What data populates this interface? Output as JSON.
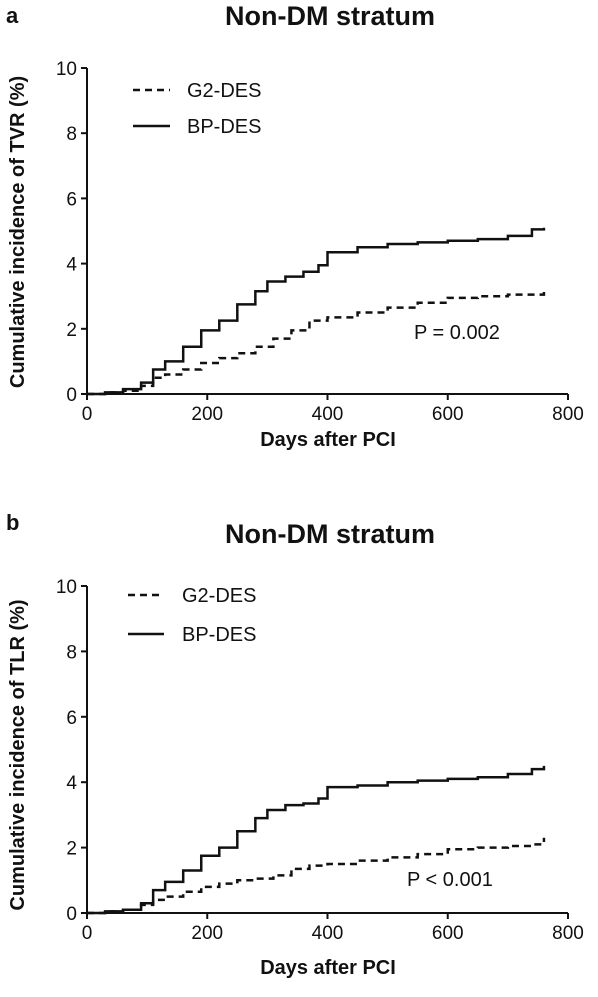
{
  "chart_data": [
    {
      "type": "line",
      "panel_label": "a",
      "title": "Non-DM stratum",
      "xlabel": "Days after PCI",
      "ylabel": "Cumulative incidence of TVR (%)",
      "xlim": [
        0,
        800
      ],
      "ylim": [
        0,
        10
      ],
      "xticks": [
        "0",
        "200",
        "400",
        "600",
        "800"
      ],
      "yticks": [
        "0",
        "2",
        "4",
        "6",
        "8",
        "10"
      ],
      "grid": false,
      "legend_position": "top-left",
      "annotation": "P = 0.002",
      "series": [
        {
          "name": "G2-DES",
          "style": "dashed",
          "x": [
            0,
            30,
            60,
            90,
            110,
            130,
            160,
            190,
            220,
            250,
            280,
            310,
            340,
            370,
            400,
            450,
            500,
            550,
            600,
            650,
            700,
            760
          ],
          "y": [
            0,
            0.05,
            0.1,
            0.25,
            0.5,
            0.6,
            0.75,
            0.95,
            1.1,
            1.25,
            1.45,
            1.7,
            1.95,
            2.25,
            2.35,
            2.5,
            2.65,
            2.8,
            2.95,
            3.0,
            3.05,
            3.15
          ]
        },
        {
          "name": "BP-DES",
          "style": "solid",
          "x": [
            0,
            30,
            60,
            90,
            110,
            130,
            160,
            190,
            220,
            250,
            280,
            300,
            330,
            360,
            385,
            400,
            450,
            500,
            550,
            600,
            650,
            700,
            740,
            760
          ],
          "y": [
            0,
            0.05,
            0.15,
            0.35,
            0.75,
            1.0,
            1.45,
            1.95,
            2.25,
            2.75,
            3.15,
            3.45,
            3.6,
            3.75,
            3.95,
            4.35,
            4.5,
            4.6,
            4.65,
            4.7,
            4.75,
            4.85,
            5.05,
            5.1
          ]
        }
      ]
    },
    {
      "type": "line",
      "panel_label": "b",
      "title": "Non-DM stratum",
      "xlabel": "Days after PCI",
      "ylabel": "Cumulative incidence of TLR (%)",
      "xlim": [
        0,
        800
      ],
      "ylim": [
        0,
        10
      ],
      "xticks": [
        "0",
        "200",
        "400",
        "600",
        "800"
      ],
      "yticks": [
        "0",
        "2",
        "4",
        "6",
        "8",
        "10"
      ],
      "grid": false,
      "legend_position": "top-left",
      "annotation": "P < 0.001",
      "series": [
        {
          "name": "G2-DES",
          "style": "dashed",
          "x": [
            0,
            30,
            60,
            90,
            110,
            130,
            160,
            190,
            220,
            250,
            280,
            310,
            340,
            370,
            400,
            450,
            500,
            550,
            600,
            650,
            700,
            740,
            760
          ],
          "y": [
            0,
            0.05,
            0.1,
            0.25,
            0.4,
            0.5,
            0.65,
            0.8,
            0.9,
            1.0,
            1.05,
            1.15,
            1.35,
            1.45,
            1.5,
            1.6,
            1.7,
            1.8,
            1.95,
            2.0,
            2.05,
            2.1,
            2.3
          ]
        },
        {
          "name": "BP-DES",
          "style": "solid",
          "x": [
            0,
            30,
            60,
            90,
            110,
            130,
            160,
            190,
            220,
            250,
            280,
            300,
            330,
            360,
            385,
            400,
            450,
            500,
            550,
            600,
            650,
            700,
            740,
            760
          ],
          "y": [
            0,
            0.05,
            0.1,
            0.3,
            0.7,
            0.95,
            1.3,
            1.75,
            2.0,
            2.5,
            2.9,
            3.15,
            3.3,
            3.35,
            3.5,
            3.85,
            3.9,
            4.0,
            4.05,
            4.1,
            4.15,
            4.25,
            4.4,
            4.5
          ]
        }
      ]
    }
  ]
}
